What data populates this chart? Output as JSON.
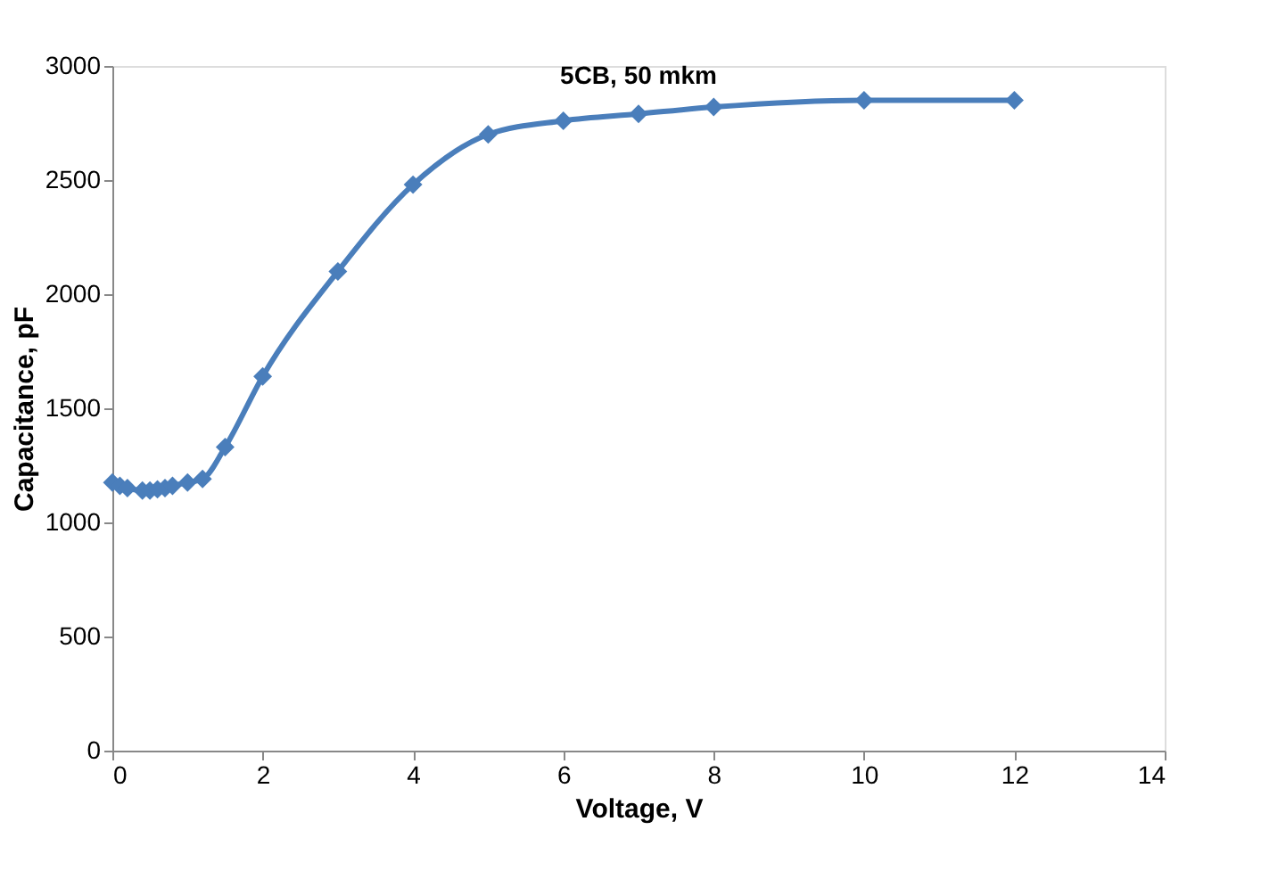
{
  "chart_data": {
    "type": "line",
    "title": "5CB, 50 mkm",
    "xlabel": "Voltage, V",
    "ylabel": "Capacitance, pF",
    "x": [
      0,
      0.1,
      0.2,
      0.4,
      0.5,
      0.6,
      0.7,
      0.8,
      1.0,
      1.2,
      1.5,
      2,
      3,
      4,
      5,
      6,
      7,
      8,
      10,
      12
    ],
    "series": [
      {
        "color": "#4a7ebb",
        "values": [
          1175,
          1160,
          1150,
          1140,
          1140,
          1145,
          1150,
          1160,
          1175,
          1190,
          1330,
          1640,
          2100,
          2480,
          2700,
          2760,
          2790,
          2820,
          2850,
          2850
        ]
      }
    ],
    "xlim": [
      0,
      14
    ],
    "xticks": [
      0,
      2,
      4,
      6,
      8,
      10,
      12,
      14
    ],
    "ylim": [
      0,
      3000
    ],
    "yticks": [
      0,
      500,
      1000,
      1500,
      2000,
      2500,
      3000
    ],
    "grid": false,
    "legend": false,
    "marker": "diamond",
    "line_style": "solid"
  }
}
